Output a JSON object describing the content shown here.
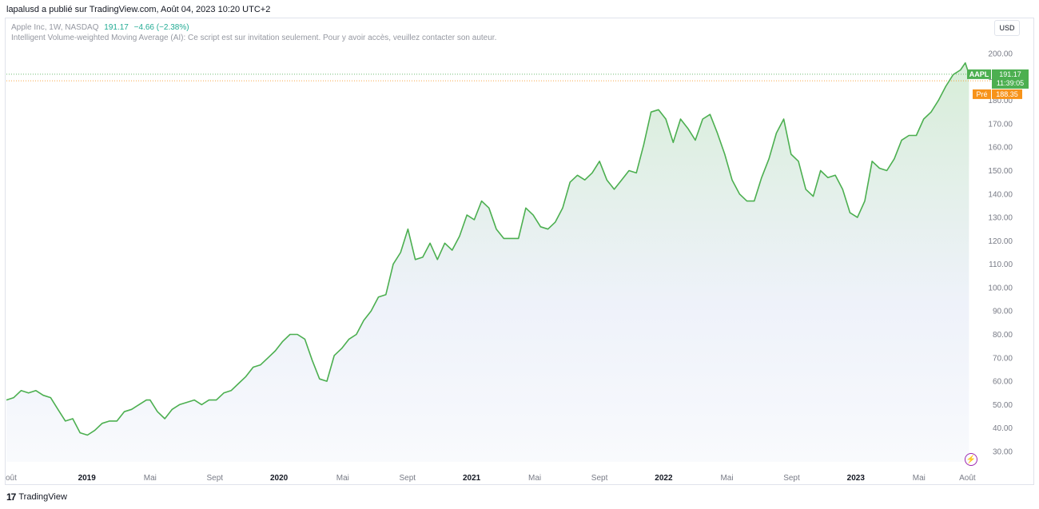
{
  "header": {
    "publisher_line": "lapalusd a publié sur TradingView.com, Août 04, 2023 10:20 UTC+2"
  },
  "legend": {
    "symbol_info": "Apple Inc, 1W, NASDAQ",
    "price": "191.17",
    "change": "−4.66 (−2.38%)",
    "indicator_note": "Intelligent Volume-weighted Moving Average (AI): Ce script est sur invitation seulement. Pour y avoir accès, veuillez contacter son auteur."
  },
  "currency": "USD",
  "tags": {
    "symbol": "AAPL",
    "last_price": "191.17",
    "countdown": "11:39:05",
    "pre_label": "Pré",
    "pre_price": "188.35"
  },
  "footer": {
    "brand": "TradingView",
    "brand_logo": "17"
  },
  "colors": {
    "line": "#4caf50",
    "pre": "#f7931a",
    "accent": "#9c27b0"
  },
  "icons": {
    "bolt": "lightning-bolt-icon"
  },
  "chart_data": {
    "type": "area",
    "title": "Apple Inc, 1W, NASDAQ",
    "ylabel": "",
    "xlabel": "",
    "ylim": [
      28,
      205
    ],
    "y_ticks": [
      30,
      40,
      50,
      60,
      70,
      80,
      90,
      100,
      110,
      120,
      130,
      140,
      150,
      160,
      170,
      180,
      190,
      200
    ],
    "x_ticks": [
      {
        "label": "oût",
        "date": "2018-08-01",
        "bold": false
      },
      {
        "label": "2019",
        "date": "2019-01-01",
        "bold": true
      },
      {
        "label": "Mai",
        "date": "2019-05-01",
        "bold": false
      },
      {
        "label": "Sept",
        "date": "2019-09-01",
        "bold": false
      },
      {
        "label": "2020",
        "date": "2020-01-01",
        "bold": true
      },
      {
        "label": "Mai",
        "date": "2020-05-01",
        "bold": false
      },
      {
        "label": "Sept",
        "date": "2020-09-01",
        "bold": false
      },
      {
        "label": "2021",
        "date": "2021-01-01",
        "bold": true
      },
      {
        "label": "Mai",
        "date": "2021-05-01",
        "bold": false
      },
      {
        "label": "Sept",
        "date": "2021-09-01",
        "bold": false
      },
      {
        "label": "2022",
        "date": "2022-01-01",
        "bold": true
      },
      {
        "label": "Mai",
        "date": "2022-05-01",
        "bold": false
      },
      {
        "label": "Sept",
        "date": "2022-09-01",
        "bold": false
      },
      {
        "label": "2023",
        "date": "2023-01-01",
        "bold": true
      },
      {
        "label": "Mai",
        "date": "2023-05-01",
        "bold": false
      },
      {
        "label": "Août",
        "date": "2023-08-01",
        "bold": false
      }
    ],
    "series": [
      {
        "values": [
          [
            "2018-08-01",
            52
          ],
          [
            "2018-08-15",
            53
          ],
          [
            "2018-08-29",
            56
          ],
          [
            "2018-09-12",
            55
          ],
          [
            "2018-09-26",
            56
          ],
          [
            "2018-10-10",
            54
          ],
          [
            "2018-10-24",
            53
          ],
          [
            "2018-11-07",
            48
          ],
          [
            "2018-11-21",
            43
          ],
          [
            "2018-12-05",
            44
          ],
          [
            "2018-12-19",
            38
          ],
          [
            "2019-01-02",
            37
          ],
          [
            "2019-01-16",
            39
          ],
          [
            "2019-01-30",
            42
          ],
          [
            "2019-02-13",
            43
          ],
          [
            "2019-02-27",
            43
          ],
          [
            "2019-03-13",
            47
          ],
          [
            "2019-03-27",
            48
          ],
          [
            "2019-04-10",
            50
          ],
          [
            "2019-04-24",
            52
          ],
          [
            "2019-05-01",
            52
          ],
          [
            "2019-05-15",
            47
          ],
          [
            "2019-05-29",
            44
          ],
          [
            "2019-06-12",
            48
          ],
          [
            "2019-06-26",
            50
          ],
          [
            "2019-07-10",
            51
          ],
          [
            "2019-07-24",
            52
          ],
          [
            "2019-08-07",
            50
          ],
          [
            "2019-08-21",
            52
          ],
          [
            "2019-09-04",
            52
          ],
          [
            "2019-09-18",
            55
          ],
          [
            "2019-10-02",
            56
          ],
          [
            "2019-10-16",
            59
          ],
          [
            "2019-10-30",
            62
          ],
          [
            "2019-11-13",
            66
          ],
          [
            "2019-11-27",
            67
          ],
          [
            "2019-12-11",
            70
          ],
          [
            "2019-12-25",
            73
          ],
          [
            "2020-01-08",
            77
          ],
          [
            "2020-01-22",
            80
          ],
          [
            "2020-02-05",
            80
          ],
          [
            "2020-02-19",
            78
          ],
          [
            "2020-03-04",
            69
          ],
          [
            "2020-03-18",
            61
          ],
          [
            "2020-04-01",
            60
          ],
          [
            "2020-04-15",
            71
          ],
          [
            "2020-04-29",
            74
          ],
          [
            "2020-05-13",
            78
          ],
          [
            "2020-05-27",
            80
          ],
          [
            "2020-06-10",
            86
          ],
          [
            "2020-06-24",
            90
          ],
          [
            "2020-07-08",
            96
          ],
          [
            "2020-07-22",
            97
          ],
          [
            "2020-08-05",
            110
          ],
          [
            "2020-08-19",
            115
          ],
          [
            "2020-09-02",
            125
          ],
          [
            "2020-09-16",
            112
          ],
          [
            "2020-09-30",
            113
          ],
          [
            "2020-10-14",
            119
          ],
          [
            "2020-10-28",
            112
          ],
          [
            "2020-11-11",
            119
          ],
          [
            "2020-11-25",
            116
          ],
          [
            "2020-12-09",
            122
          ],
          [
            "2020-12-23",
            131
          ],
          [
            "2021-01-06",
            129
          ],
          [
            "2021-01-20",
            137
          ],
          [
            "2021-02-03",
            134
          ],
          [
            "2021-02-17",
            125
          ],
          [
            "2021-03-03",
            121
          ],
          [
            "2021-03-17",
            121
          ],
          [
            "2021-03-31",
            121
          ],
          [
            "2021-04-14",
            134
          ],
          [
            "2021-04-28",
            131
          ],
          [
            "2021-05-12",
            126
          ],
          [
            "2021-05-26",
            125
          ],
          [
            "2021-06-09",
            128
          ],
          [
            "2021-06-23",
            134
          ],
          [
            "2021-07-07",
            145
          ],
          [
            "2021-07-21",
            148
          ],
          [
            "2021-08-04",
            146
          ],
          [
            "2021-08-18",
            149
          ],
          [
            "2021-09-01",
            154
          ],
          [
            "2021-09-15",
            146
          ],
          [
            "2021-09-29",
            142
          ],
          [
            "2021-10-13",
            146
          ],
          [
            "2021-10-27",
            150
          ],
          [
            "2021-11-10",
            149
          ],
          [
            "2021-11-24",
            161
          ],
          [
            "2021-12-08",
            175
          ],
          [
            "2021-12-22",
            176
          ],
          [
            "2022-01-05",
            172
          ],
          [
            "2022-01-19",
            162
          ],
          [
            "2022-02-02",
            172
          ],
          [
            "2022-02-16",
            168
          ],
          [
            "2022-03-02",
            163
          ],
          [
            "2022-03-16",
            172
          ],
          [
            "2022-03-30",
            174
          ],
          [
            "2022-04-13",
            166
          ],
          [
            "2022-04-27",
            157
          ],
          [
            "2022-05-11",
            146
          ],
          [
            "2022-05-25",
            140
          ],
          [
            "2022-06-08",
            137
          ],
          [
            "2022-06-22",
            137
          ],
          [
            "2022-07-06",
            147
          ],
          [
            "2022-07-20",
            155
          ],
          [
            "2022-08-03",
            166
          ],
          [
            "2022-08-17",
            172
          ],
          [
            "2022-08-31",
            157
          ],
          [
            "2022-09-14",
            154
          ],
          [
            "2022-09-28",
            142
          ],
          [
            "2022-10-12",
            139
          ],
          [
            "2022-10-26",
            150
          ],
          [
            "2022-11-09",
            147
          ],
          [
            "2022-11-23",
            148
          ],
          [
            "2022-12-07",
            142
          ],
          [
            "2022-12-21",
            132
          ],
          [
            "2023-01-04",
            130
          ],
          [
            "2023-01-18",
            137
          ],
          [
            "2023-02-01",
            154
          ],
          [
            "2023-02-15",
            151
          ],
          [
            "2023-03-01",
            150
          ],
          [
            "2023-03-15",
            155
          ],
          [
            "2023-03-29",
            163
          ],
          [
            "2023-04-12",
            165
          ],
          [
            "2023-04-26",
            165
          ],
          [
            "2023-05-10",
            172
          ],
          [
            "2023-05-24",
            175
          ],
          [
            "2023-06-07",
            180
          ],
          [
            "2023-06-21",
            186
          ],
          [
            "2023-07-05",
            191
          ],
          [
            "2023-07-19",
            193
          ],
          [
            "2023-07-28",
            196
          ],
          [
            "2023-08-04",
            191.17
          ]
        ]
      }
    ],
    "price_lines": [
      {
        "label": "AAPL",
        "value": 191.17,
        "color": "#4caf50"
      },
      {
        "label": "Pré",
        "value": 188.35,
        "color": "#f7931a"
      }
    ],
    "grid": false,
    "legend": "none"
  }
}
